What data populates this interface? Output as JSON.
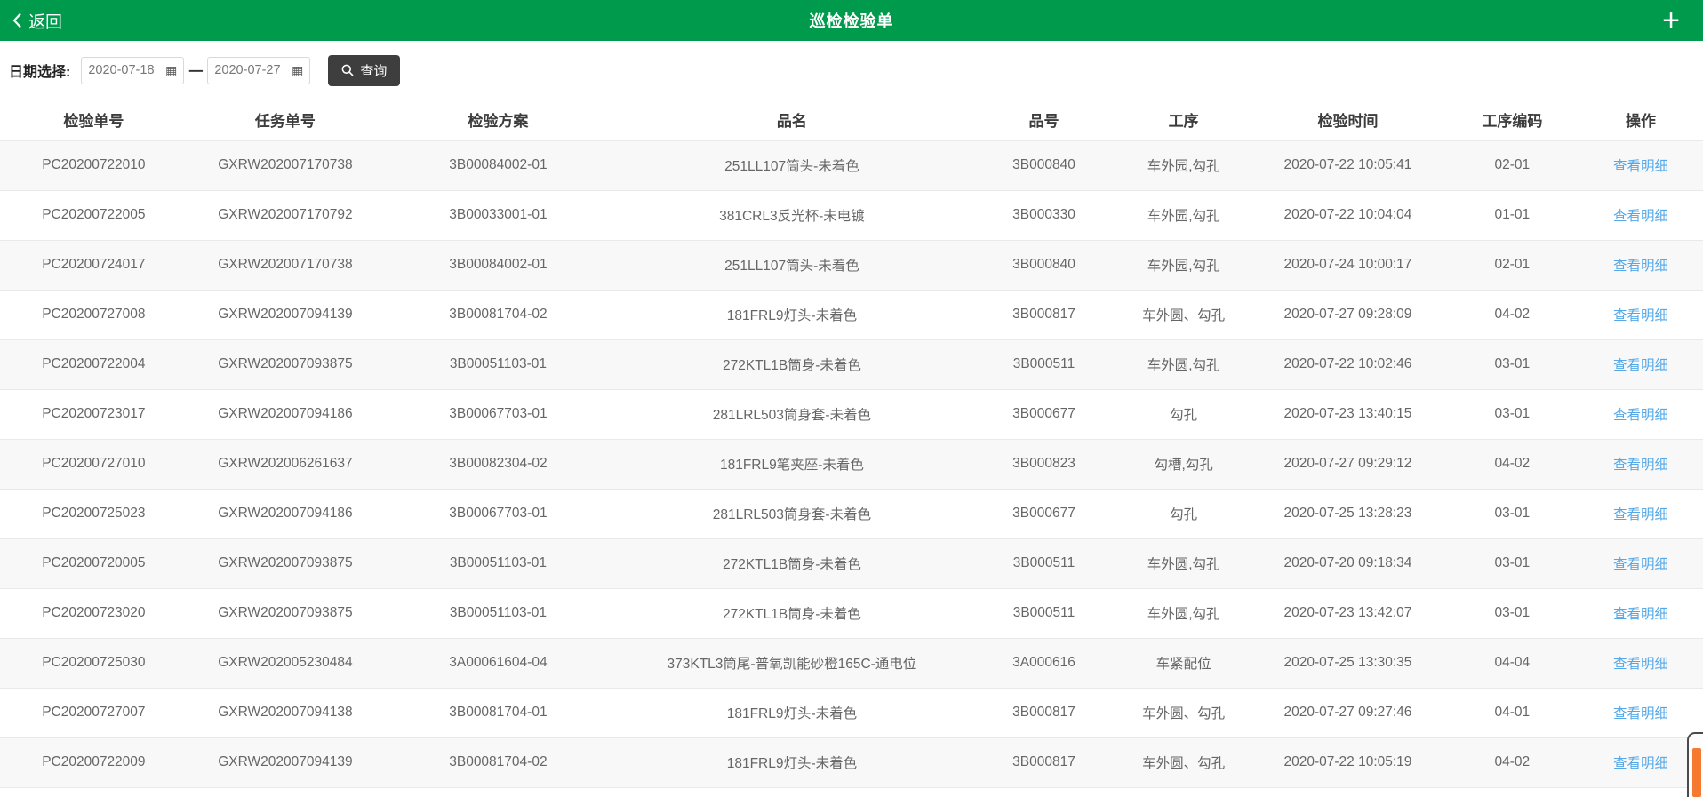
{
  "header": {
    "back_label": "返回",
    "title": "巡检检验单"
  },
  "icons": {
    "calendar_glyph": "▦",
    "add_glyph": "+"
  },
  "filter": {
    "date_label": "日期选择:",
    "date_from": "2020-07-18",
    "date_to": "2020-07-27",
    "separator": "一",
    "query_label": "查询"
  },
  "colors": {
    "accent_green": "#009a4d",
    "button_dark": "#3e3e3e",
    "link_blue": "#54a8e8",
    "scrollbar_orange": "#f5792e",
    "row_stripe": "#f8f8f8"
  },
  "table": {
    "columns": [
      "检验单号",
      "任务单号",
      "检验方案",
      "品名",
      "品号",
      "工序",
      "检验时间",
      "工序编码",
      "操作"
    ],
    "fields": [
      "order_no",
      "task_no",
      "plan",
      "product_name",
      "product_no",
      "process",
      "time",
      "process_code"
    ],
    "action_label": "查看明细",
    "rows": [
      {
        "order_no": "PC20200722010",
        "task_no": "GXRW202007170738",
        "plan": "3B00084002-01",
        "product_name": "251LL107筒头-未着色",
        "product_no": "3B000840",
        "process": "车外园,勾孔",
        "time": "2020-07-22 10:05:41",
        "process_code": "02-01"
      },
      {
        "order_no": "PC20200722005",
        "task_no": "GXRW202007170792",
        "plan": "3B00033001-01",
        "product_name": "381CRL3反光杯-未电镀",
        "product_no": "3B000330",
        "process": "车外园,勾孔",
        "time": "2020-07-22 10:04:04",
        "process_code": "01-01"
      },
      {
        "order_no": "PC20200724017",
        "task_no": "GXRW202007170738",
        "plan": "3B00084002-01",
        "product_name": "251LL107筒头-未着色",
        "product_no": "3B000840",
        "process": "车外园,勾孔",
        "time": "2020-07-24 10:00:17",
        "process_code": "02-01"
      },
      {
        "order_no": "PC20200727008",
        "task_no": "GXRW202007094139",
        "plan": "3B00081704-02",
        "product_name": "181FRL9灯头-未着色",
        "product_no": "3B000817",
        "process": "车外圆、勾孔",
        "time": "2020-07-27 09:28:09",
        "process_code": "04-02"
      },
      {
        "order_no": "PC20200722004",
        "task_no": "GXRW202007093875",
        "plan": "3B00051103-01",
        "product_name": "272KTL1B筒身-未着色",
        "product_no": "3B000511",
        "process": "车外圆,勾孔",
        "time": "2020-07-22 10:02:46",
        "process_code": "03-01"
      },
      {
        "order_no": "PC20200723017",
        "task_no": "GXRW202007094186",
        "plan": "3B00067703-01",
        "product_name": "281LRL503筒身套-未着色",
        "product_no": "3B000677",
        "process": "勾孔",
        "time": "2020-07-23 13:40:15",
        "process_code": "03-01"
      },
      {
        "order_no": "PC20200727010",
        "task_no": "GXRW202006261637",
        "plan": "3B00082304-02",
        "product_name": "181FRL9笔夹座-未着色",
        "product_no": "3B000823",
        "process": "勾槽,勾孔",
        "time": "2020-07-27 09:29:12",
        "process_code": "04-02"
      },
      {
        "order_no": "PC20200725023",
        "task_no": "GXRW202007094186",
        "plan": "3B00067703-01",
        "product_name": "281LRL503筒身套-未着色",
        "product_no": "3B000677",
        "process": "勾孔",
        "time": "2020-07-25 13:28:23",
        "process_code": "03-01"
      },
      {
        "order_no": "PC20200720005",
        "task_no": "GXRW202007093875",
        "plan": "3B00051103-01",
        "product_name": "272KTL1B筒身-未着色",
        "product_no": "3B000511",
        "process": "车外圆,勾孔",
        "time": "2020-07-20 09:18:34",
        "process_code": "03-01"
      },
      {
        "order_no": "PC20200723020",
        "task_no": "GXRW202007093875",
        "plan": "3B00051103-01",
        "product_name": "272KTL1B筒身-未着色",
        "product_no": "3B000511",
        "process": "车外圆,勾孔",
        "time": "2020-07-23 13:42:07",
        "process_code": "03-01"
      },
      {
        "order_no": "PC20200725030",
        "task_no": "GXRW202005230484",
        "plan": "3A00061604-04",
        "product_name": "373KTL3筒尾-普氧凯能砂橙165C-通电位",
        "product_no": "3A000616",
        "process": "车紧配位",
        "time": "2020-07-25 13:30:35",
        "process_code": "04-04"
      },
      {
        "order_no": "PC20200727007",
        "task_no": "GXRW202007094138",
        "plan": "3B00081704-01",
        "product_name": "181FRL9灯头-未着色",
        "product_no": "3B000817",
        "process": "车外圆、勾孔",
        "time": "2020-07-27 09:27:46",
        "process_code": "04-01"
      },
      {
        "order_no": "PC20200722009",
        "task_no": "GXRW202007094139",
        "plan": "3B00081704-02",
        "product_name": "181FRL9灯头-未着色",
        "product_no": "3B000817",
        "process": "车外圆、勾孔",
        "time": "2020-07-22 10:05:19",
        "process_code": "04-02"
      }
    ]
  }
}
